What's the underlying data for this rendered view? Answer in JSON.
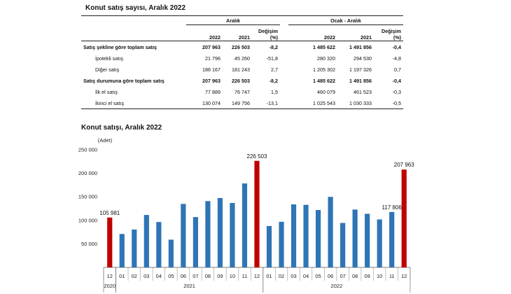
{
  "table": {
    "title": "Konut satış sayısı, Aralık 2022",
    "group_aralik": "Aralık",
    "group_ocak": "Ocak - Aralık",
    "col_2022": "2022",
    "col_2021": "2021",
    "col_change": "Değişim",
    "col_change_unit": "(%)",
    "rows": [
      {
        "label": "Satış şekline göre toplam satış",
        "main": true,
        "a2022": "207 963",
        "a2021": "226 503",
        "ach": "-8,2",
        "o2022": "1 485 622",
        "o2021": "1 491 856",
        "och": "-0,4"
      },
      {
        "label": "İpotekli satış",
        "main": false,
        "a2022": "21 796",
        "a2021": "45 260",
        "ach": "-51,8",
        "o2022": "280 320",
        "o2021": "294 530",
        "och": "-4,8"
      },
      {
        "label": "Diğer satış",
        "main": false,
        "a2022": "186 167",
        "a2021": "181 243",
        "ach": "2,7",
        "o2022": "1 205 302",
        "o2021": "1 197 326",
        "och": "0,7"
      },
      {
        "label": "Satış durumuna göre toplam satış",
        "main": true,
        "a2022": "207 963",
        "a2021": "226 503",
        "ach": "-8,2",
        "o2022": "1 485 622",
        "o2021": "1 491 856",
        "och": "-0,4"
      },
      {
        "label": "İlk el satış",
        "main": false,
        "a2022": "77 889",
        "a2021": "76 747",
        "ach": "1,5",
        "o2022": "460 079",
        "o2021": "461 523",
        "och": "-0,3"
      },
      {
        "label": "İkinci el satış",
        "main": false,
        "a2022": "130 074",
        "a2021": "149 756",
        "ach": "-13,1",
        "o2022": "1 025 543",
        "o2021": "1 030 333",
        "och": "-0,5"
      }
    ]
  },
  "chart_data": {
    "type": "bar",
    "title": "Konut satışı, Aralık 2022",
    "ylabel": "(Adet)",
    "ylim": [
      0,
      250000
    ],
    "yticks": [
      50000,
      100000,
      150000,
      200000,
      250000
    ],
    "ytick_labels": [
      "50 000",
      "100 000",
      "150 000",
      "200 000",
      "250 000"
    ],
    "categories": [
      "12",
      "01",
      "02",
      "03",
      "04",
      "05",
      "06",
      "07",
      "08",
      "09",
      "10",
      "11",
      "12",
      "01",
      "02",
      "03",
      "04",
      "05",
      "06",
      "07",
      "08",
      "09",
      "10",
      "11",
      "12"
    ],
    "values": [
      105981,
      71000,
      80500,
      111500,
      96500,
      59000,
      135000,
      107000,
      141000,
      147500,
      137000,
      178500,
      226503,
      88000,
      97000,
      134000,
      133000,
      122000,
      150000,
      94500,
      123000,
      114000,
      102000,
      117806,
      207963
    ],
    "highlight": [
      true,
      false,
      false,
      false,
      false,
      false,
      false,
      false,
      false,
      false,
      false,
      false,
      true,
      false,
      false,
      false,
      false,
      false,
      false,
      false,
      false,
      false,
      false,
      false,
      true
    ],
    "data_labels": [
      {
        "index": 0,
        "text": "105 981"
      },
      {
        "index": 12,
        "text": "226 503"
      },
      {
        "index": 23,
        "text": "117 806"
      },
      {
        "index": 24,
        "text": "207 963"
      }
    ],
    "years": [
      {
        "label": "2020",
        "start": 0,
        "end": 0
      },
      {
        "label": "2021",
        "start": 1,
        "end": 12
      },
      {
        "label": "2022",
        "start": 13,
        "end": 24
      }
    ],
    "colors": {
      "normal": "#2e75b6",
      "highlight": "#c00000"
    }
  }
}
